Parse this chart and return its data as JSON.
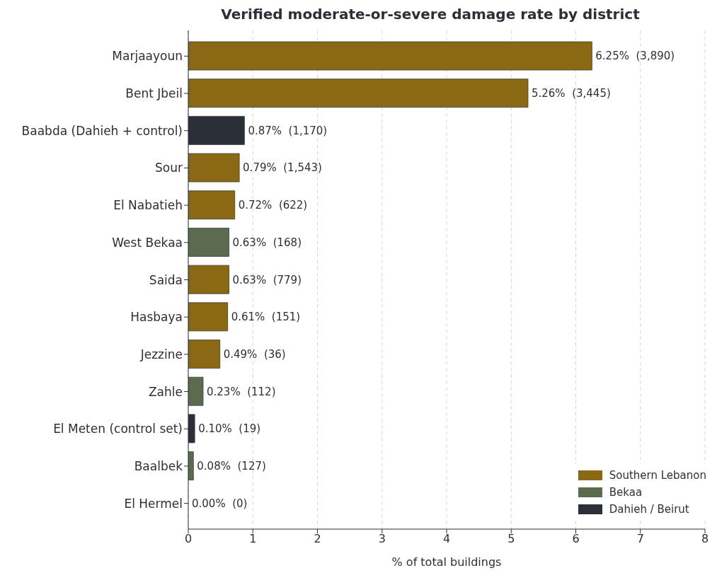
{
  "chart_data": {
    "type": "bar",
    "orientation": "horizontal",
    "stacked": true,
    "title": "Verified moderate-or-severe damage rate by district",
    "xlabel": "% of total buildings",
    "categories": [
      "Marjaayoun",
      "Bent Jbeil",
      "Baabda (Dahieh + control)",
      "Sour",
      "El Nabatieh",
      "West Bekaa",
      "Saida",
      "Hasbaya",
      "Jezzine",
      "Zahle",
      "El Meten (control set)",
      "Baalbek",
      "El Hermel"
    ],
    "series": [
      {
        "name": "Southern Lebanon",
        "color": "#8b6914",
        "values": [
          6.25,
          5.26,
          null,
          0.79,
          0.72,
          null,
          0.63,
          0.61,
          0.49,
          null,
          null,
          null,
          null
        ],
        "value_labels": [
          "6.25%  (3,890)",
          "5.26%  (3,445)",
          null,
          "0.79%  (1,543)",
          "0.72%  (622)",
          null,
          "0.63%  (779)",
          "0.61%  (151)",
          "0.49%  (36)",
          null,
          null,
          null,
          null
        ]
      },
      {
        "name": "Bekaa",
        "color": "#5c6b4f",
        "values": [
          null,
          null,
          null,
          null,
          null,
          0.63,
          null,
          null,
          null,
          0.23,
          null,
          0.08,
          0.0
        ],
        "value_labels": [
          null,
          null,
          null,
          null,
          null,
          "0.63%  (168)",
          null,
          null,
          null,
          "0.23%  (112)",
          null,
          "0.08%  (127)",
          "0.00%  (0)"
        ]
      },
      {
        "name": "Dahieh / Beirut",
        "color": "#2b2f38",
        "values": [
          null,
          null,
          0.87,
          null,
          null,
          null,
          null,
          null,
          null,
          null,
          0.1,
          null,
          null
        ],
        "value_labels": [
          null,
          null,
          "0.87%  (1,170)",
          null,
          null,
          null,
          null,
          null,
          null,
          null,
          "0.10%  (19)",
          null,
          null
        ]
      }
    ],
    "xlim": [
      0,
      8
    ],
    "xticks": [
      0,
      1,
      2,
      3,
      4,
      5,
      6,
      7,
      8
    ],
    "grid": "x",
    "legend": "bottom right"
  }
}
